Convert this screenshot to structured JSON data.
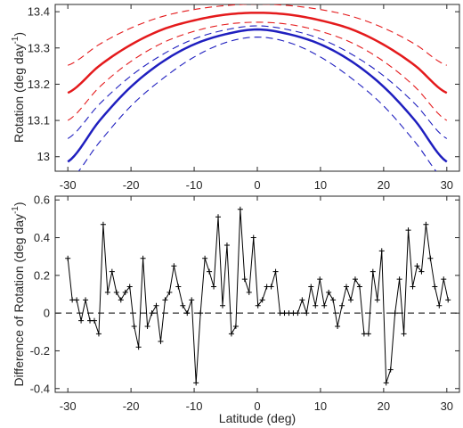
{
  "chart_data": [
    {
      "type": "line",
      "title": "",
      "xlabel": "",
      "ylabel": "Rotation (deg day",
      "ylabel_sup": "-1",
      "ylabel_close": ")",
      "xlim": [
        -32,
        32
      ],
      "ylim": [
        12.96,
        13.42
      ],
      "xticks": [
        -30,
        -20,
        -10,
        0,
        10,
        20,
        30
      ],
      "xtick_labels": [
        "-30",
        "-20",
        "-10",
        "0",
        "10",
        "20",
        "30"
      ],
      "yticks": [
        13.0,
        13.1,
        13.2,
        13.3,
        13.4
      ],
      "ytick_labels": [
        "13",
        "13.1",
        "13.2",
        "13.3",
        "13.4"
      ],
      "grid": false,
      "legend": "none",
      "x": [
        -30,
        -25,
        -20,
        -15,
        -10,
        -5,
        0,
        5,
        10,
        15,
        20,
        25,
        30
      ],
      "series": [
        {
          "color": "#e41a1c",
          "style": "solid",
          "width": 2.5,
          "values": [
            13.176,
            13.251,
            13.309,
            13.351,
            13.376,
            13.392,
            13.397,
            13.392,
            13.376,
            13.351,
            13.309,
            13.251,
            13.176
          ]
        },
        {
          "color": "#e41a1c",
          "style": "dashed",
          "width": 1.1,
          "values": [
            13.252,
            13.31,
            13.355,
            13.387,
            13.406,
            13.417,
            13.421,
            13.417,
            13.406,
            13.387,
            13.355,
            13.31,
            13.252
          ]
        },
        {
          "color": "#e41a1c",
          "style": "dashed",
          "width": 1.1,
          "values": [
            13.1,
            13.192,
            13.263,
            13.314,
            13.346,
            13.365,
            13.371,
            13.365,
            13.346,
            13.314,
            13.263,
            13.192,
            13.1
          ]
        },
        {
          "color": "#1f1fbf",
          "style": "solid",
          "width": 2.5,
          "values": [
            12.986,
            13.099,
            13.193,
            13.262,
            13.31,
            13.338,
            13.351,
            13.338,
            13.31,
            13.262,
            13.193,
            13.099,
            12.986
          ]
        },
        {
          "color": "#1f1fbf",
          "style": "dashed",
          "width": 1.1,
          "values": [
            13.05,
            13.145,
            13.223,
            13.282,
            13.325,
            13.35,
            13.361,
            13.35,
            13.325,
            13.282,
            13.223,
            13.145,
            13.05
          ]
        },
        {
          "color": "#1f1fbf",
          "style": "dashed",
          "width": 1.1,
          "values": [
            12.93,
            13.04,
            13.14,
            13.215,
            13.275,
            13.315,
            13.33,
            13.315,
            13.275,
            13.215,
            13.14,
            13.04,
            12.93
          ]
        }
      ]
    },
    {
      "type": "line",
      "title": "",
      "xlabel": "Latitude (deg)",
      "ylabel": "Difference of Rotation (deg day",
      "ylabel_sup": "-1",
      "ylabel_close": ")",
      "xlim": [
        -32,
        32
      ],
      "ylim": [
        -0.42,
        0.62
      ],
      "xticks": [
        -30,
        -20,
        -10,
        0,
        10,
        20,
        30
      ],
      "xtick_labels": [
        "-30",
        "-20",
        "-10",
        "0",
        "10",
        "20",
        "30"
      ],
      "yticks": [
        -0.4,
        -0.2,
        0,
        0.2,
        0.4,
        0.6
      ],
      "ytick_labels": [
        "-0.4",
        "-0.2",
        "0",
        "0.2",
        "0.4",
        "0.6"
      ],
      "grid": false,
      "legend": "none",
      "reference_line": {
        "y": 0,
        "style": "dashed"
      },
      "series": [
        {
          "color": "#000000",
          "style": "solid",
          "marker": "+",
          "points": [
            [
              -30,
              0.29
            ],
            [
              -29.3,
              0.07
            ],
            [
              -28.6,
              0.07
            ],
            [
              -27.9,
              -0.04
            ],
            [
              -27.2,
              0.07
            ],
            [
              -26.5,
              -0.04
            ],
            [
              -25.8,
              -0.04
            ],
            [
              -25.1,
              -0.11
            ],
            [
              -24.4,
              0.47
            ],
            [
              -23.7,
              0.11
            ],
            [
              -23.0,
              0.22
            ],
            [
              -22.3,
              0.11
            ],
            [
              -21.6,
              0.07
            ],
            [
              -20.9,
              0.11
            ],
            [
              -20.2,
              0.14
            ],
            [
              -19.5,
              -0.07
            ],
            [
              -18.8,
              -0.18
            ],
            [
              -18.1,
              0.29
            ],
            [
              -17.4,
              -0.07
            ],
            [
              -16.7,
              0.0
            ],
            [
              -16.0,
              0.04
            ],
            [
              -15.3,
              -0.15
            ],
            [
              -14.6,
              0.07
            ],
            [
              -13.9,
              0.11
            ],
            [
              -13.2,
              0.25
            ],
            [
              -12.5,
              0.14
            ],
            [
              -11.8,
              0.04
            ],
            [
              -11.1,
              0.0
            ],
            [
              -10.4,
              0.07
            ],
            [
              -9.7,
              -0.37
            ],
            [
              -9.0,
              0.0
            ],
            [
              -8.3,
              0.29
            ],
            [
              -7.6,
              0.22
            ],
            [
              -6.9,
              0.14
            ],
            [
              -6.2,
              0.51
            ],
            [
              -5.5,
              0.04
            ],
            [
              -4.8,
              0.36
            ],
            [
              -4.1,
              -0.11
            ],
            [
              -3.4,
              -0.07
            ],
            [
              -2.7,
              0.55
            ],
            [
              -2.0,
              0.18
            ],
            [
              -1.3,
              0.11
            ],
            [
              -0.6,
              0.4
            ],
            [
              0.1,
              0.04
            ],
            [
              0.8,
              0.07
            ],
            [
              1.5,
              0.14
            ],
            [
              2.2,
              0.14
            ],
            [
              2.9,
              0.22
            ],
            [
              3.6,
              0.0
            ],
            [
              4.3,
              0.0
            ],
            [
              5.0,
              0.0
            ],
            [
              5.7,
              0.0
            ],
            [
              6.4,
              0.0
            ],
            [
              7.1,
              0.07
            ],
            [
              7.8,
              0.0
            ],
            [
              8.5,
              0.14
            ],
            [
              9.2,
              0.04
            ],
            [
              9.9,
              0.18
            ],
            [
              10.6,
              0.04
            ],
            [
              11.3,
              0.11
            ],
            [
              12.0,
              0.07
            ],
            [
              12.7,
              -0.07
            ],
            [
              13.4,
              0.04
            ],
            [
              14.1,
              0.14
            ],
            [
              14.8,
              0.07
            ],
            [
              15.5,
              0.18
            ],
            [
              16.2,
              0.14
            ],
            [
              16.9,
              -0.11
            ],
            [
              17.6,
              -0.11
            ],
            [
              18.3,
              0.22
            ],
            [
              19.0,
              0.07
            ],
            [
              19.7,
              0.33
            ],
            [
              20.4,
              -0.37
            ],
            [
              21.1,
              -0.3
            ],
            [
              21.8,
              0.0
            ],
            [
              22.5,
              0.18
            ],
            [
              23.2,
              -0.11
            ],
            [
              23.9,
              0.44
            ],
            [
              24.6,
              0.14
            ],
            [
              25.3,
              0.25
            ],
            [
              26.0,
              0.22
            ],
            [
              26.7,
              0.47
            ],
            [
              27.4,
              0.29
            ],
            [
              28.1,
              0.14
            ],
            [
              28.8,
              0.04
            ],
            [
              29.5,
              0.18
            ],
            [
              30.2,
              0.07
            ]
          ]
        }
      ]
    }
  ]
}
